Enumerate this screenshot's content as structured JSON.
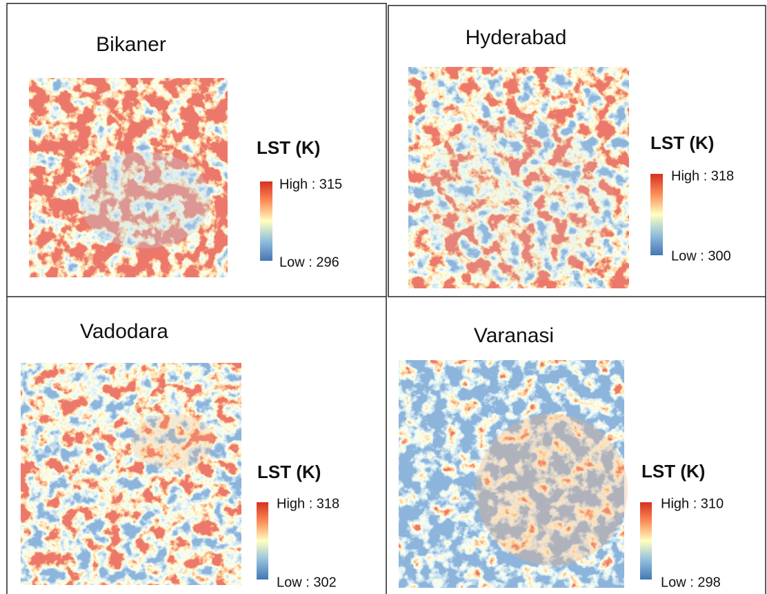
{
  "panels": [
    {
      "title": "Bikaner",
      "legend_title": "LST (K)",
      "high": "High : 315",
      "low": "Low : 296"
    },
    {
      "title": "Hyderabad",
      "legend_title": "LST (K)",
      "high": "High : 318",
      "low": "Low : 300"
    },
    {
      "title": "Vadodara",
      "legend_title": "LST (K)",
      "high": "High : 318",
      "low": "Low : 302"
    },
    {
      "title": "Varanasi",
      "legend_title": "LST (K)",
      "high": "High : 310",
      "low": "Low : 298"
    }
  ]
}
